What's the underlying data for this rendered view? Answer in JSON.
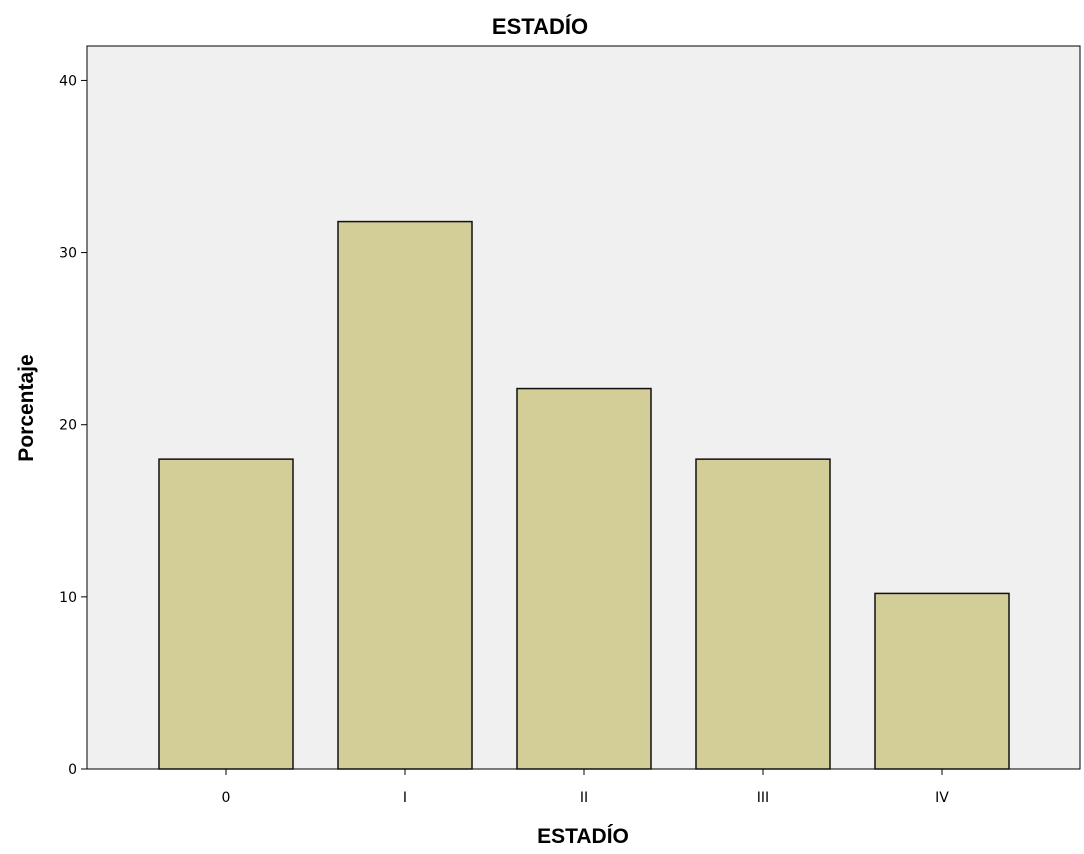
{
  "chart_data": {
    "type": "bar",
    "title": "ESTADÍO",
    "xlabel": "ESTADÍO",
    "ylabel": "Porcentaje",
    "categories": [
      "0",
      "I",
      "II",
      "III",
      "IV"
    ],
    "values": [
      18.0,
      31.8,
      22.1,
      18.0,
      10.2
    ],
    "ylim": [
      0,
      42
    ],
    "yticks": [
      "0",
      "10",
      "20",
      "30",
      "40"
    ],
    "grid": false,
    "legend": "none",
    "colors": {
      "bar_fill": "#d3ce97",
      "bar_stroke": "#111111",
      "plot_background": "#f0f0f0",
      "axis": "#000000"
    }
  }
}
